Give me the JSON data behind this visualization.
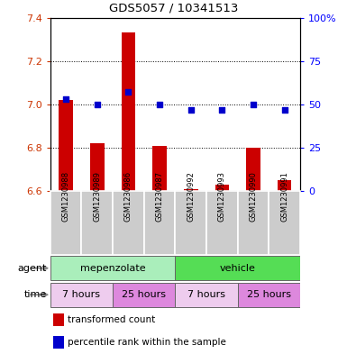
{
  "title": "GDS5057 / 10341513",
  "samples": [
    "GSM1230988",
    "GSM1230989",
    "GSM1230986",
    "GSM1230987",
    "GSM1230992",
    "GSM1230993",
    "GSM1230990",
    "GSM1230991"
  ],
  "bar_values": [
    7.02,
    6.82,
    7.33,
    6.81,
    6.61,
    6.63,
    6.8,
    6.65
  ],
  "dot_values": [
    53,
    50,
    57,
    50,
    47,
    47,
    50,
    47
  ],
  "ylim_left": [
    6.6,
    7.4
  ],
  "ylim_right": [
    0,
    100
  ],
  "yticks_left": [
    6.6,
    6.8,
    7.0,
    7.2,
    7.4
  ],
  "yticks_right": [
    0,
    25,
    50,
    75,
    100
  ],
  "bar_color": "#cc0000",
  "dot_color": "#0000cc",
  "bar_bottom": 6.6,
  "agent_labels": [
    "mepenzolate",
    "vehicle"
  ],
  "agent_colors": [
    "#aaeebb",
    "#55dd55"
  ],
  "time_labels": [
    "7 hours",
    "25 hours",
    "7 hours",
    "25 hours"
  ],
  "time_colors_7": "#eeccee",
  "time_colors_25": "#dd88dd",
  "legend_bar_label": "transformed count",
  "legend_dot_label": "percentile rank within the sample",
  "plot_bg": "#ffffff",
  "sample_bg": "#cccccc",
  "agent_row_label": "agent",
  "time_row_label": "time",
  "bar_width": 0.45
}
